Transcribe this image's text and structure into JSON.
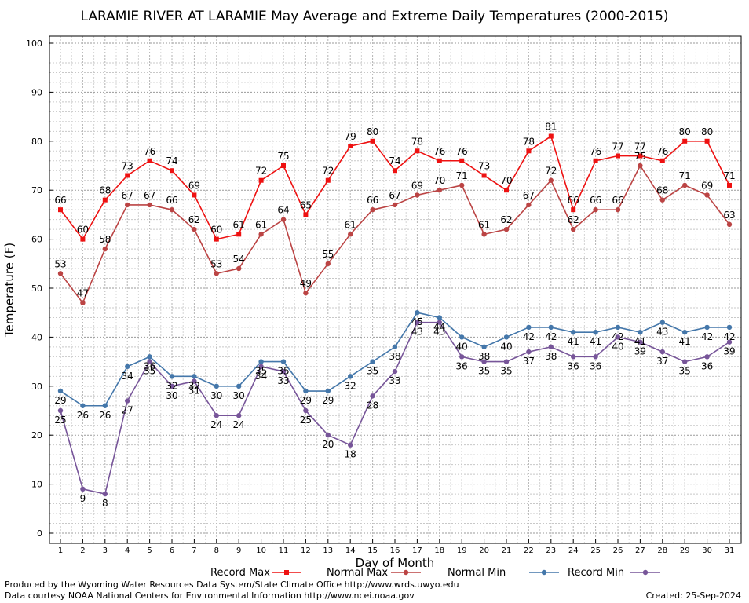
{
  "chart_data": {
    "type": "line",
    "title": "LARAMIE RIVER AT LARAMIE May Average and Extreme Daily Temperatures (2000-2015)",
    "xlabel": "Day of Month",
    "ylabel": "Temperature (F)",
    "ylim": [
      0,
      100
    ],
    "yticks": [
      "0",
      "10",
      "20",
      "30",
      "40",
      "50",
      "60",
      "70",
      "80",
      "90",
      "100"
    ],
    "categories": [
      "1",
      "2",
      "3",
      "4",
      "5",
      "6",
      "7",
      "8",
      "9",
      "10",
      "11",
      "12",
      "13",
      "14",
      "15",
      "16",
      "17",
      "18",
      "19",
      "20",
      "21",
      "22",
      "23",
      "24",
      "25",
      "26",
      "27",
      "28",
      "29",
      "30",
      "31"
    ],
    "grid": true,
    "legend_position": "bottom",
    "series": [
      {
        "name": "Record Max",
        "color": "#ee1111",
        "marker": "square",
        "label_side": "above",
        "values": [
          66,
          60,
          68,
          73,
          76,
          74,
          69,
          60,
          61,
          72,
          75,
          65,
          72,
          79,
          80,
          74,
          78,
          76,
          76,
          73,
          70,
          78,
          81,
          66,
          76,
          77,
          77,
          76,
          80,
          80,
          71
        ]
      },
      {
        "name": "Normal Max",
        "color": "#bb4444",
        "marker": "circle",
        "label_side": "above",
        "values": [
          53,
          47,
          58,
          67,
          67,
          66,
          62,
          53,
          54,
          61,
          64,
          49,
          55,
          61,
          66,
          67,
          69,
          70,
          71,
          61,
          62,
          67,
          72,
          62,
          66,
          66,
          75,
          68,
          71,
          69,
          63
        ]
      },
      {
        "name": "Normal Min",
        "color": "#4477aa",
        "marker": "circle",
        "label_side": "below",
        "values": [
          29,
          26,
          26,
          34,
          36,
          32,
          32,
          30,
          30,
          35,
          35,
          29,
          29,
          32,
          35,
          38,
          45,
          44,
          40,
          38,
          40,
          42,
          42,
          41,
          41,
          42,
          41,
          43,
          41,
          42,
          42
        ]
      },
      {
        "name": "Record Min",
        "color": "#775599",
        "marker": "circle",
        "label_side": "below",
        "values": [
          25,
          9,
          8,
          27,
          35,
          30,
          31,
          24,
          24,
          34,
          33,
          25,
          20,
          18,
          28,
          33,
          43,
          43,
          36,
          35,
          35,
          37,
          38,
          36,
          36,
          40,
          39,
          37,
          35,
          36,
          39
        ]
      }
    ]
  },
  "footer": {
    "produced_by": "Produced by the Wyoming Water Resources Data System/State Climate Office http://www.wrds.uwyo.edu",
    "courtesy": "Data courtesy NOAA National Centers for Environmental Information http://www.ncei.noaa.gov",
    "created": "Created: 25-Sep-2024"
  }
}
